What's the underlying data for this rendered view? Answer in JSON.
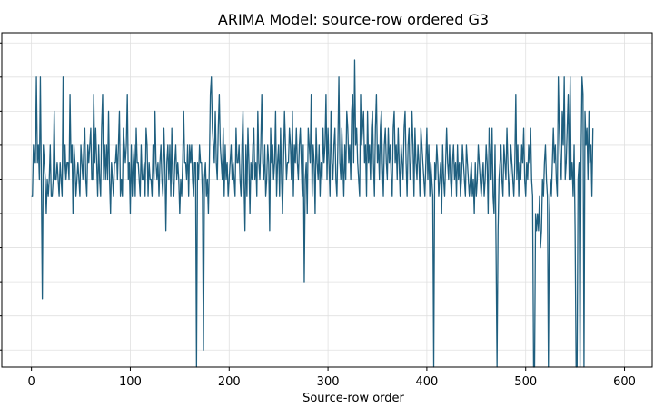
{
  "chart_data": {
    "type": "line",
    "title": "ARIMA Model: source-row ordered G3",
    "xlabel": "Source-row order",
    "ylabel": "",
    "xlim": [
      -30,
      628
    ],
    "ylim": [
      0,
      19.6
    ],
    "grid": true,
    "color": "#1f5f7f",
    "x_ticks": [
      0,
      100,
      200,
      300,
      400,
      500,
      600
    ],
    "y_ticks": [
      1,
      3,
      5,
      7,
      9,
      11,
      13,
      15,
      17,
      19
    ],
    "series": [
      {
        "x_start": 0,
        "x_step": 1,
        "values": [
          10,
          10,
          13,
          12,
          12,
          17,
          12,
          13,
          11,
          17,
          11,
          4,
          13,
          12,
          11,
          9,
          11,
          10,
          11,
          13,
          10,
          10,
          11,
          15,
          11,
          11,
          12,
          11,
          10,
          12,
          11,
          10,
          17,
          11,
          13,
          11,
          12,
          12,
          11,
          16,
          12,
          13,
          9,
          13,
          12,
          10,
          11,
          12,
          11,
          10,
          13,
          12,
          11,
          13,
          14,
          11,
          10,
          13,
          12,
          13,
          14,
          11,
          11,
          16,
          12,
          14,
          12,
          10,
          13,
          11,
          10,
          14,
          16,
          11,
          13,
          11,
          13,
          11,
          15,
          11,
          9,
          12,
          11,
          10,
          12,
          12,
          13,
          11,
          13,
          15,
          10,
          11,
          10,
          14,
          13,
          12,
          13,
          16,
          11,
          12,
          9,
          13,
          10,
          12,
          13,
          10,
          14,
          12,
          12,
          11,
          10,
          13,
          11,
          11,
          12,
          10,
          14,
          13,
          10,
          12,
          11,
          11,
          10,
          13,
          11,
          15,
          12,
          11,
          12,
          10,
          12,
          13,
          11,
          10,
          14,
          12,
          8,
          12,
          13,
          11,
          13,
          10,
          14,
          11,
          10,
          12,
          13,
          11,
          12,
          11,
          9,
          11,
          10,
          12,
          15,
          12,
          12,
          11,
          13,
          10,
          13,
          12,
          13,
          11,
          10,
          12,
          12,
          0,
          12,
          11,
          13,
          12,
          12,
          10,
          1,
          11,
          12,
          10,
          11,
          9,
          12,
          16,
          17,
          14,
          13,
          12,
          15,
          12,
          11,
          14,
          16,
          13,
          12,
          11,
          14,
          10,
          13,
          11,
          12,
          10,
          11,
          12,
          13,
          11,
          12,
          11,
          10,
          14,
          12,
          12,
          13,
          11,
          10,
          13,
          15,
          11,
          8,
          13,
          10,
          14,
          12,
          9,
          12,
          11,
          13,
          14,
          11,
          12,
          10,
          15,
          12,
          11,
          13,
          16,
          12,
          11,
          13,
          10,
          11,
          13,
          12,
          8,
          14,
          12,
          13,
          11,
          12,
          15,
          10,
          12,
          13,
          10,
          14,
          11,
          9,
          12,
          15,
          13,
          11,
          12,
          12,
          14,
          13,
          11,
          15,
          10,
          13,
          12,
          14,
          12,
          11,
          13,
          14,
          12,
          10,
          13,
          5,
          11,
          12,
          9,
          14,
          13,
          12,
          16,
          10,
          13,
          12,
          9,
          14,
          12,
          11,
          13,
          10,
          12,
          11,
          14,
          12,
          13,
          16,
          11,
          14,
          12,
          10,
          15,
          12,
          11,
          13,
          14,
          11,
          10,
          13,
          17,
          12,
          11,
          14,
          12,
          10,
          13,
          11,
          15,
          14,
          12,
          13,
          11,
          15,
          16,
          12,
          18,
          13,
          14,
          12,
          11,
          10,
          16,
          13,
          14,
          15,
          12,
          13,
          10,
          15,
          12,
          13,
          11,
          14,
          15,
          12,
          10,
          14,
          16,
          12,
          13,
          11,
          14,
          15,
          12,
          10,
          13,
          14,
          12,
          11,
          14,
          12,
          13,
          11,
          10,
          14,
          15,
          12,
          13,
          11,
          14,
          12,
          10,
          13,
          12,
          11,
          14,
          15,
          12,
          10,
          13,
          14,
          11,
          12,
          15,
          13,
          10,
          14,
          12,
          11,
          13,
          12,
          10,
          14,
          13,
          12,
          11,
          10,
          12,
          14,
          11,
          13,
          10,
          12,
          11,
          10,
          0,
          12,
          11,
          13,
          12,
          10,
          11,
          12,
          9,
          13,
          11,
          10,
          12,
          14,
          12,
          11,
          13,
          11,
          10,
          12,
          13,
          11,
          12,
          10,
          13,
          11,
          12,
          10,
          11,
          13,
          12,
          11,
          10,
          13,
          12,
          11,
          10,
          11,
          12,
          10,
          11,
          9,
          12,
          10,
          11,
          13,
          12,
          11,
          10,
          11,
          12,
          10,
          11,
          13,
          12,
          9,
          14,
          13,
          11,
          14,
          10,
          9,
          13,
          7,
          0,
          8,
          11,
          12,
          13,
          11,
          10,
          13,
          12,
          11,
          14,
          12,
          10,
          11,
          13,
          12,
          11,
          10,
          12,
          16,
          11,
          13,
          10,
          12,
          11,
          13,
          12,
          14,
          11,
          10,
          12,
          11,
          13,
          12,
          14,
          11,
          10,
          0,
          0,
          9,
          8,
          9,
          8,
          10,
          7,
          8,
          11,
          10,
          12,
          13,
          11,
          10,
          0,
          9,
          11,
          10,
          12,
          14,
          12,
          13,
          11,
          10,
          17,
          14,
          12,
          11,
          15,
          13,
          17,
          11,
          12,
          14,
          16,
          11,
          17,
          11,
          12,
          10,
          13,
          8,
          0,
          0,
          11,
          12,
          0,
          12,
          17,
          16,
          0,
          15,
          13,
          14,
          11,
          15,
          12,
          13,
          10,
          14
        ]
      }
    ]
  }
}
